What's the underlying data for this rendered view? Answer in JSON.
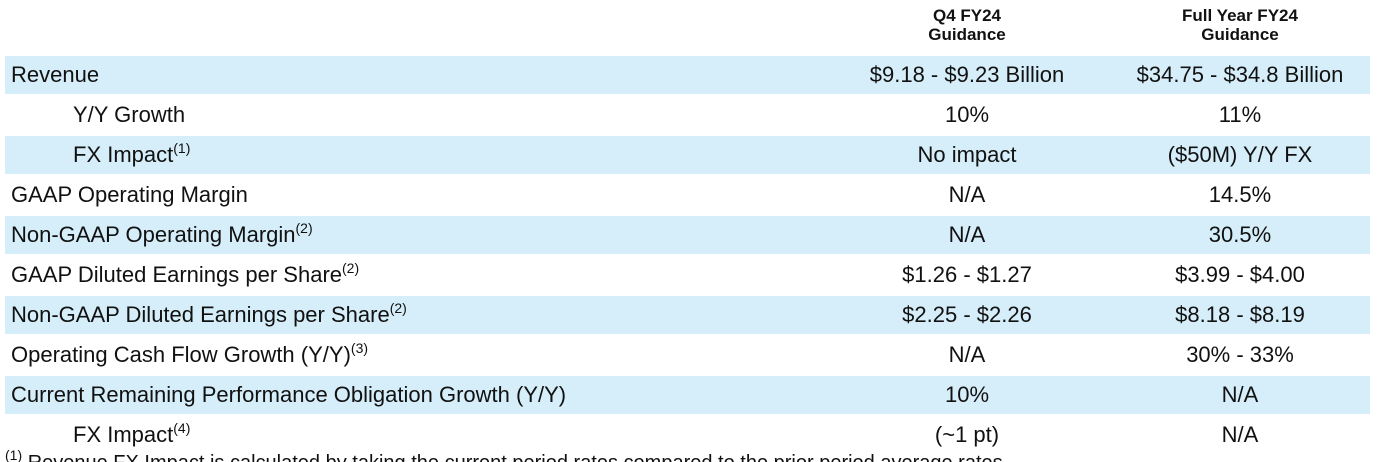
{
  "header": {
    "q4": [
      "Q4 FY24",
      "Guidance"
    ],
    "fy": [
      "Full Year FY24",
      "Guidance"
    ]
  },
  "rows": [
    {
      "label": "Revenue",
      "q4": "$9.18 - $9.23 Billion",
      "fy": "$34.75 - $34.8 Billion"
    },
    {
      "label": "Y/Y Growth",
      "sub": true,
      "q4": "10%",
      "fy": "11%"
    },
    {
      "label": "FX Impact",
      "note": "(1)",
      "sub": true,
      "q4": "No impact",
      "fy": "($50M) Y/Y FX"
    },
    {
      "label": "GAAP Operating Margin",
      "q4": "N/A",
      "fy": "14.5%"
    },
    {
      "label": "Non-GAAP Operating Margin",
      "note": "(2)",
      "q4": "N/A",
      "fy": "30.5%"
    },
    {
      "label": "GAAP Diluted Earnings per Share",
      "note": "(2)",
      "q4": "$1.26 - $1.27",
      "fy": "$3.99 - $4.00"
    },
    {
      "label": "Non-GAAP Diluted Earnings per Share",
      "note": "(2)",
      "q4": "$2.25 - $2.26",
      "fy": "$8.18 - $8.19"
    },
    {
      "label": "Operating Cash Flow Growth (Y/Y)",
      "note": "(3)",
      "q4": "N/A",
      "fy": "30% - 33%"
    },
    {
      "label": "Current Remaining Performance Obligation Growth (Y/Y)",
      "q4": "10%",
      "fy": "N/A"
    },
    {
      "label": "FX Impact",
      "note": "(4)",
      "sub": true,
      "q4": "(~1 pt)",
      "fy": "N/A"
    }
  ],
  "footnote": {
    "note": "(1)",
    "text": "Revenue FX Impact is calculated by taking the current period rates compared to the prior period average rates"
  }
}
